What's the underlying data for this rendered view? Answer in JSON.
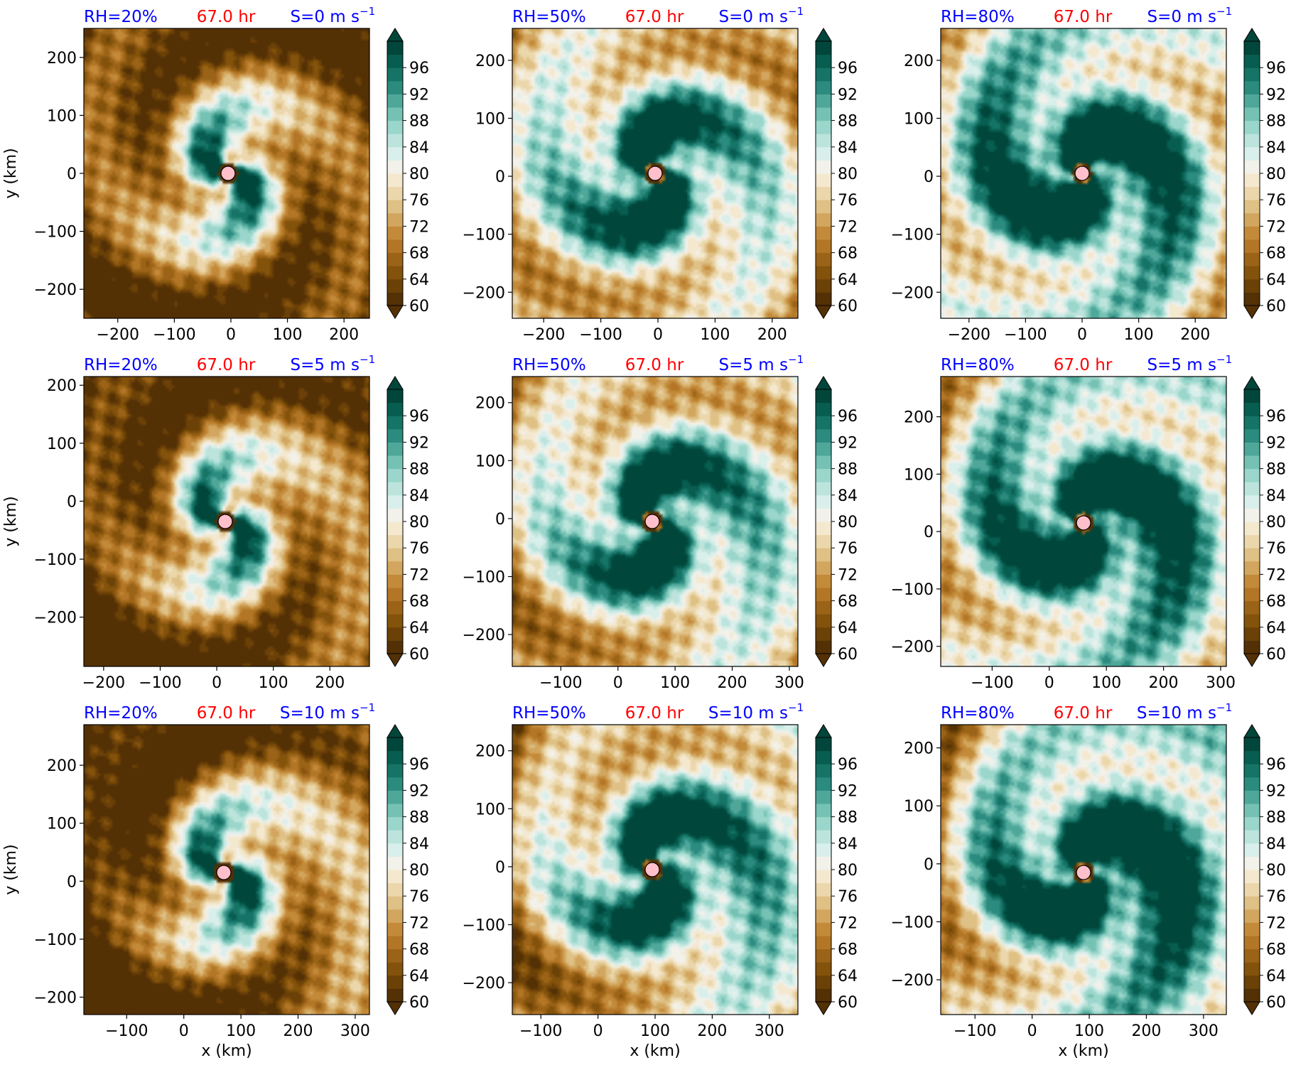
{
  "chart_data": {
    "type": "heatmap",
    "figure_description_variable": "relative humidity (%)",
    "colorbar": {
      "min": 60,
      "max": 100,
      "step": 2,
      "extend": "both",
      "tick_labels": [
        "60",
        "64",
        "68",
        "72",
        "76",
        "80",
        "84",
        "88",
        "92",
        "96"
      ],
      "colors": [
        "#543005",
        "#6b4108",
        "#83520b",
        "#9b6317",
        "#b27626",
        "#c38a3a",
        "#d2a65e",
        "#dfc085",
        "#ebd7ab",
        "#f4e8cf",
        "#f2f1ea",
        "#d9efeb",
        "#bce4dc",
        "#9ad6cb",
        "#75c2b4",
        "#4fa79a",
        "#2b8b7f",
        "#157466",
        "#075d50",
        "#01463b"
      ]
    },
    "panels": [
      {
        "rh": "RH=20%",
        "time": "67.0 hr",
        "shear": "S=0 m s",
        "row": 0,
        "col": 0,
        "xlim": [
          -260,
          245
        ],
        "ylim": [
          -250,
          250
        ],
        "xticks": [
          -200,
          -100,
          0,
          100,
          200
        ],
        "xtick_labels": [
          "−200",
          "−100",
          "0",
          "100",
          "200"
        ],
        "yticks": [
          -200,
          -100,
          0,
          100,
          200
        ],
        "ytick_labels": [
          "−200",
          "−100",
          "0",
          "100",
          "200"
        ],
        "ylabel": "y (km)",
        "xlabel": "",
        "center": [
          -5,
          0
        ]
      },
      {
        "rh": "RH=50%",
        "time": "67.0 hr",
        "shear": "S=0 m s",
        "row": 0,
        "col": 1,
        "xlim": [
          -255,
          245
        ],
        "ylim": [
          -245,
          255
        ],
        "xticks": [
          -200,
          -100,
          0,
          100,
          200
        ],
        "xtick_labels": [
          "−200",
          "−100",
          "0",
          "100",
          "200"
        ],
        "yticks": [
          -200,
          -100,
          0,
          100,
          200
        ],
        "ytick_labels": [
          "−200",
          "−100",
          "0",
          "100",
          "200"
        ],
        "ylabel": "",
        "xlabel": "",
        "center": [
          -5,
          5
        ]
      },
      {
        "rh": "RH=80%",
        "time": "67.0 hr",
        "shear": "S=0 m s",
        "row": 0,
        "col": 2,
        "xlim": [
          -250,
          255
        ],
        "ylim": [
          -245,
          255
        ],
        "xticks": [
          -200,
          -100,
          0,
          100,
          200
        ],
        "xtick_labels": [
          "−200",
          "−100",
          "0",
          "100",
          "200"
        ],
        "yticks": [
          -200,
          -100,
          0,
          100,
          200
        ],
        "ytick_labels": [
          "−200",
          "−100",
          "0",
          "100",
          "200"
        ],
        "ylabel": "",
        "xlabel": "",
        "center": [
          0,
          5
        ]
      },
      {
        "rh": "RH=20%",
        "time": "67.0 hr",
        "shear": "S=5 m s",
        "row": 1,
        "col": 0,
        "xlim": [
          -235,
          270
        ],
        "ylim": [
          -285,
          215
        ],
        "xticks": [
          -200,
          -100,
          0,
          100,
          200
        ],
        "xtick_labels": [
          "−200",
          "−100",
          "0",
          "100",
          "200"
        ],
        "yticks": [
          -200,
          -100,
          0,
          100,
          200
        ],
        "ytick_labels": [
          "−200",
          "−100",
          "0",
          "100",
          "200"
        ],
        "ylabel": "y (km)",
        "xlabel": "",
        "center": [
          15,
          -35
        ]
      },
      {
        "rh": "RH=50%",
        "time": "67.0 hr",
        "shear": "S=5 m s",
        "row": 1,
        "col": 1,
        "xlim": [
          -185,
          315
        ],
        "ylim": [
          -255,
          245
        ],
        "xticks": [
          -100,
          0,
          100,
          200,
          300
        ],
        "xtick_labels": [
          "−100",
          "0",
          "100",
          "200",
          "300"
        ],
        "yticks": [
          -200,
          -100,
          0,
          100,
          200
        ],
        "ytick_labels": [
          "−200",
          "−100",
          "0",
          "100",
          "200"
        ],
        "ylabel": "",
        "xlabel": "",
        "center": [
          60,
          -5
        ]
      },
      {
        "rh": "RH=80%",
        "time": "67.0 hr",
        "shear": "S=5 m s",
        "row": 1,
        "col": 2,
        "xlim": [
          -190,
          310
        ],
        "ylim": [
          -235,
          270
        ],
        "xticks": [
          -100,
          0,
          100,
          200,
          300
        ],
        "xtick_labels": [
          "−100",
          "0",
          "100",
          "200",
          "300"
        ],
        "yticks": [
          -200,
          -100,
          0,
          100,
          200
        ],
        "ytick_labels": [
          "−200",
          "−100",
          "0",
          "100",
          "200"
        ],
        "ylabel": "",
        "xlabel": "",
        "center": [
          60,
          15
        ]
      },
      {
        "rh": "RH=20%",
        "time": "67.0 hr",
        "shear": "S=10 m s",
        "row": 2,
        "col": 0,
        "xlim": [
          -175,
          325
        ],
        "ylim": [
          -230,
          270
        ],
        "xticks": [
          -100,
          0,
          100,
          200,
          300
        ],
        "xtick_labels": [
          "−100",
          "0",
          "100",
          "200",
          "300"
        ],
        "yticks": [
          -200,
          -100,
          0,
          100,
          200
        ],
        "ytick_labels": [
          "−200",
          "−100",
          "0",
          "100",
          "200"
        ],
        "ylabel": "y (km)",
        "xlabel": "x (km)",
        "center": [
          70,
          15
        ]
      },
      {
        "rh": "RH=50%",
        "time": "67.0 hr",
        "shear": "S=10 m s",
        "row": 2,
        "col": 1,
        "xlim": [
          -150,
          350
        ],
        "ylim": [
          -255,
          245
        ],
        "xticks": [
          -100,
          0,
          100,
          200,
          300
        ],
        "xtick_labels": [
          "−100",
          "0",
          "100",
          "200",
          "300"
        ],
        "yticks": [
          -200,
          -100,
          0,
          100,
          200
        ],
        "ytick_labels": [
          "−200",
          "−100",
          "0",
          "100",
          "200"
        ],
        "ylabel": "",
        "xlabel": "x (km)",
        "center": [
          95,
          -5
        ]
      },
      {
        "rh": "RH=80%",
        "time": "67.0 hr",
        "shear": "S=10 m s",
        "row": 2,
        "col": 2,
        "xlim": [
          -160,
          340
        ],
        "ylim": [
          -260,
          240
        ],
        "xticks": [
          -100,
          0,
          100,
          200,
          300
        ],
        "xtick_labels": [
          "−100",
          "0",
          "100",
          "200",
          "300"
        ],
        "yticks": [
          -200,
          -100,
          0,
          100,
          200
        ],
        "ytick_labels": [
          "−200",
          "−100",
          "0",
          "100",
          "200"
        ],
        "ylabel": "",
        "xlabel": "x (km)",
        "center": [
          90,
          -15
        ]
      }
    ]
  }
}
